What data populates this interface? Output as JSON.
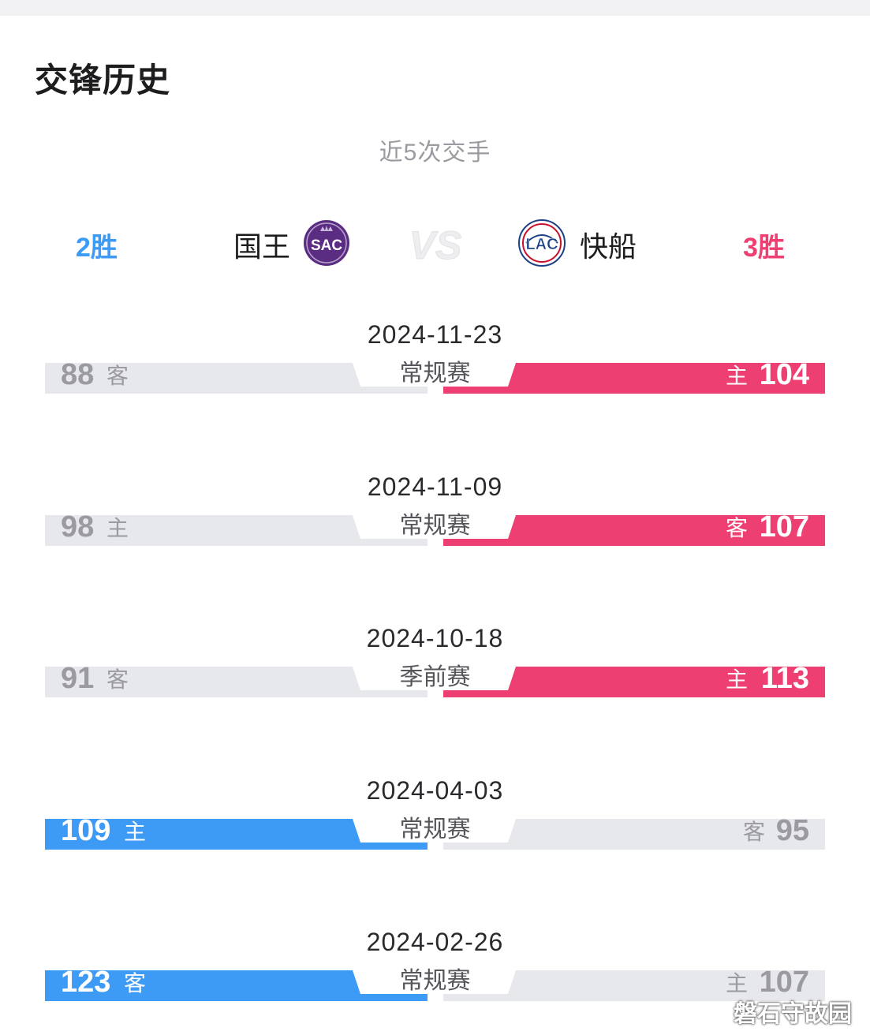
{
  "header": {
    "title": "交锋历史"
  },
  "summary": {
    "subtitle": "近5次交手",
    "left_team": {
      "name": "国王",
      "record": "2胜",
      "logo_text": "SAC",
      "color": "#5a2d82"
    },
    "right_team": {
      "name": "快船",
      "record": "3胜",
      "logo_text": "LAC",
      "color": "#1d428a"
    },
    "vs_label": "VS"
  },
  "colors": {
    "left_win": "#3d9af5",
    "right_win": "#ee3f72",
    "lose": "#e7e8ec"
  },
  "matches": [
    {
      "date": "2024-11-23",
      "type": "常规赛",
      "left_score": "88",
      "left_role": "客",
      "right_score": "104",
      "right_role": "主",
      "winner": "right"
    },
    {
      "date": "2024-11-09",
      "type": "常规赛",
      "left_score": "98",
      "left_role": "主",
      "right_score": "107",
      "right_role": "客",
      "winner": "right"
    },
    {
      "date": "2024-10-18",
      "type": "季前赛",
      "left_score": "91",
      "left_role": "客",
      "right_score": "113",
      "right_role": "主",
      "winner": "right"
    },
    {
      "date": "2024-04-03",
      "type": "常规赛",
      "left_score": "109",
      "left_role": "主",
      "right_score": "95",
      "right_role": "客",
      "winner": "left"
    },
    {
      "date": "2024-02-26",
      "type": "常规赛",
      "left_score": "123",
      "left_role": "客",
      "right_score": "107",
      "right_role": "主",
      "winner": "left"
    }
  ],
  "watermark": "磐石守故园"
}
